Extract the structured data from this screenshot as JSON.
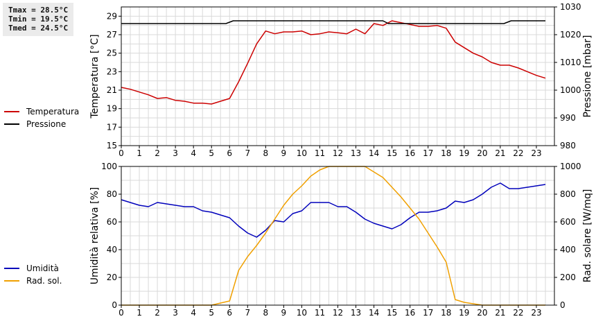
{
  "stats": {
    "tmax": "Tmax = 28.5°C",
    "tmin": "Tmin = 19.5°C",
    "tmed": "Tmed = 24.5°C"
  },
  "chart_data": [
    {
      "type": "line",
      "xlim": [
        0,
        24
      ],
      "x_ticks": [
        0,
        1,
        2,
        3,
        4,
        5,
        6,
        7,
        8,
        9,
        10,
        11,
        12,
        13,
        14,
        15,
        16,
        17,
        18,
        19,
        20,
        21,
        22,
        23
      ],
      "ylabel": "Temperatura [°C]",
      "ylim": [
        15,
        30
      ],
      "y_ticks": [
        15,
        17,
        19,
        21,
        23,
        25,
        27,
        29
      ],
      "y2label": "Pressione [mbar]",
      "y2lim": [
        980,
        1030
      ],
      "y2_ticks": [
        980,
        990,
        1000,
        1010,
        1020,
        1030
      ],
      "grid": true,
      "legend": "left",
      "series": [
        {
          "name": "Temperatura",
          "axis": "left",
          "color": "#cc0000",
          "x": [
            0,
            0.5,
            1,
            1.5,
            2,
            2.5,
            3,
            3.5,
            4,
            4.5,
            5,
            5.5,
            6,
            6.5,
            7,
            7.5,
            8,
            8.5,
            9,
            9.5,
            10,
            10.5,
            11,
            11.5,
            12,
            12.5,
            13,
            13.5,
            14,
            14.5,
            15,
            15.5,
            16,
            16.5,
            17,
            17.5,
            18,
            18.5,
            19,
            19.5,
            20,
            20.5,
            21,
            21.5,
            22,
            22.5,
            23,
            23.5
          ],
          "y": [
            21.3,
            21.1,
            20.8,
            20.5,
            20.1,
            20.2,
            19.9,
            19.8,
            19.6,
            19.6,
            19.5,
            19.8,
            20.1,
            21.9,
            23.9,
            26.0,
            27.4,
            27.1,
            27.3,
            27.3,
            27.4,
            27.0,
            27.1,
            27.3,
            27.2,
            27.1,
            27.6,
            27.1,
            28.2,
            28.0,
            28.5,
            28.3,
            28.1,
            27.9,
            27.9,
            28.0,
            27.7,
            26.2,
            25.6,
            25.0,
            24.6,
            24.0,
            23.7,
            23.7,
            23.4,
            23.0,
            22.6,
            22.3
          ]
        },
        {
          "name": "Pressione",
          "axis": "right",
          "color": "#000000",
          "x": [
            0,
            5.8,
            6.2,
            14.5,
            14.8,
            21.2,
            21.6,
            23.5
          ],
          "y": [
            1024.0,
            1024.0,
            1025.0,
            1025.0,
            1024.0,
            1024.0,
            1025.0,
            1025.0
          ]
        }
      ]
    },
    {
      "type": "line",
      "xlim": [
        0,
        24
      ],
      "x_ticks": [
        0,
        1,
        2,
        3,
        4,
        5,
        6,
        7,
        8,
        9,
        10,
        11,
        12,
        13,
        14,
        15,
        16,
        17,
        18,
        19,
        20,
        21,
        22,
        23
      ],
      "ylabel": "Umidità relativa [%]",
      "ylim": [
        0,
        100
      ],
      "y_ticks": [
        0,
        20,
        40,
        60,
        80,
        100
      ],
      "y2label": "Rad. solare [W/mq]",
      "y2lim": [
        0,
        1000
      ],
      "y2_ticks": [
        0,
        200,
        400,
        600,
        800,
        1000
      ],
      "grid": true,
      "legend": "left",
      "series": [
        {
          "name": "Umidità",
          "axis": "left",
          "color": "#0000bb",
          "x": [
            0,
            0.5,
            1,
            1.5,
            2,
            2.5,
            3,
            3.5,
            4,
            4.5,
            5,
            5.5,
            6,
            6.5,
            7,
            7.5,
            8,
            8.5,
            9,
            9.5,
            10,
            10.5,
            11,
            11.5,
            12,
            12.5,
            13,
            13.5,
            14,
            14.5,
            15,
            15.5,
            16,
            16.5,
            17,
            17.5,
            18,
            18.5,
            19,
            19.5,
            20,
            20.5,
            21,
            21.5,
            22,
            22.5,
            23,
            23.5
          ],
          "y": [
            76,
            74,
            72,
            71,
            74,
            73,
            72,
            71,
            71,
            68,
            67,
            65,
            63,
            57,
            52,
            49,
            54,
            61,
            60,
            66,
            68,
            74,
            74,
            74,
            71,
            71,
            67,
            62,
            59,
            57,
            55,
            58,
            63,
            67,
            67,
            68,
            70,
            75,
            74,
            76,
            80,
            85,
            88,
            84,
            84,
            85,
            86,
            87
          ]
        },
        {
          "name": "Rad. sol.",
          "axis": "right",
          "color": "#f0a000",
          "x": [
            0,
            5,
            5.5,
            6,
            6.5,
            7,
            7.5,
            8,
            8.5,
            9,
            9.5,
            10,
            10.5,
            11,
            11.5,
            12,
            12.5,
            13,
            13.5,
            14,
            14.5,
            15,
            15.5,
            16,
            16.5,
            17,
            17.5,
            18,
            18.5,
            19,
            19.5,
            20,
            21,
            23.5
          ],
          "y": [
            0,
            0,
            15,
            30,
            250,
            350,
            430,
            520,
            620,
            720,
            800,
            860,
            930,
            975,
            1000,
            1000,
            1000,
            1000,
            1000,
            960,
            920,
            850,
            780,
            700,
            620,
            520,
            420,
            310,
            40,
            20,
            10,
            0,
            0,
            0
          ]
        }
      ]
    }
  ]
}
